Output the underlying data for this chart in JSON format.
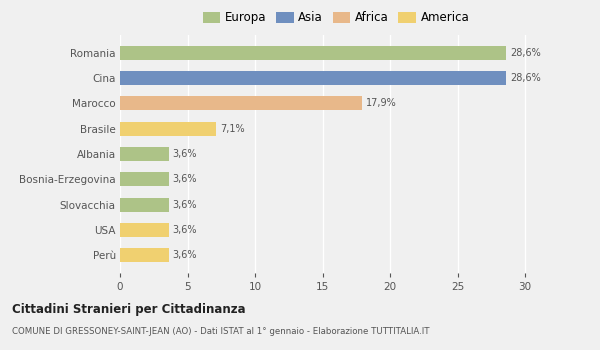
{
  "categories": [
    "Romania",
    "Cina",
    "Marocco",
    "Brasile",
    "Albania",
    "Bosnia-Erzegovina",
    "Slovacchia",
    "USA",
    "Perù"
  ],
  "values": [
    28.6,
    28.6,
    17.9,
    7.1,
    3.6,
    3.6,
    3.6,
    3.6,
    3.6
  ],
  "labels": [
    "28,6%",
    "28,6%",
    "17,9%",
    "7,1%",
    "3,6%",
    "3,6%",
    "3,6%",
    "3,6%",
    "3,6%"
  ],
  "colors": [
    "#adc387",
    "#6f8fbf",
    "#e8b88a",
    "#f0d070",
    "#adc387",
    "#adc387",
    "#adc387",
    "#f0d070",
    "#f0d070"
  ],
  "legend": [
    {
      "label": "Europa",
      "color": "#adc387"
    },
    {
      "label": "Asia",
      "color": "#6f8fbf"
    },
    {
      "label": "Africa",
      "color": "#e8b88a"
    },
    {
      "label": "America",
      "color": "#f0d070"
    }
  ],
  "xlim": [
    0,
    32
  ],
  "xticks": [
    0,
    5,
    10,
    15,
    20,
    25,
    30
  ],
  "title_main": "Cittadini Stranieri per Cittadinanza",
  "title_sub": "COMUNE DI GRESSONEY-SAINT-JEAN (AO) - Dati ISTAT al 1° gennaio - Elaborazione TUTTITALIA.IT",
  "background_color": "#f0f0f0",
  "grid_color": "#ffffff",
  "bar_height": 0.55
}
